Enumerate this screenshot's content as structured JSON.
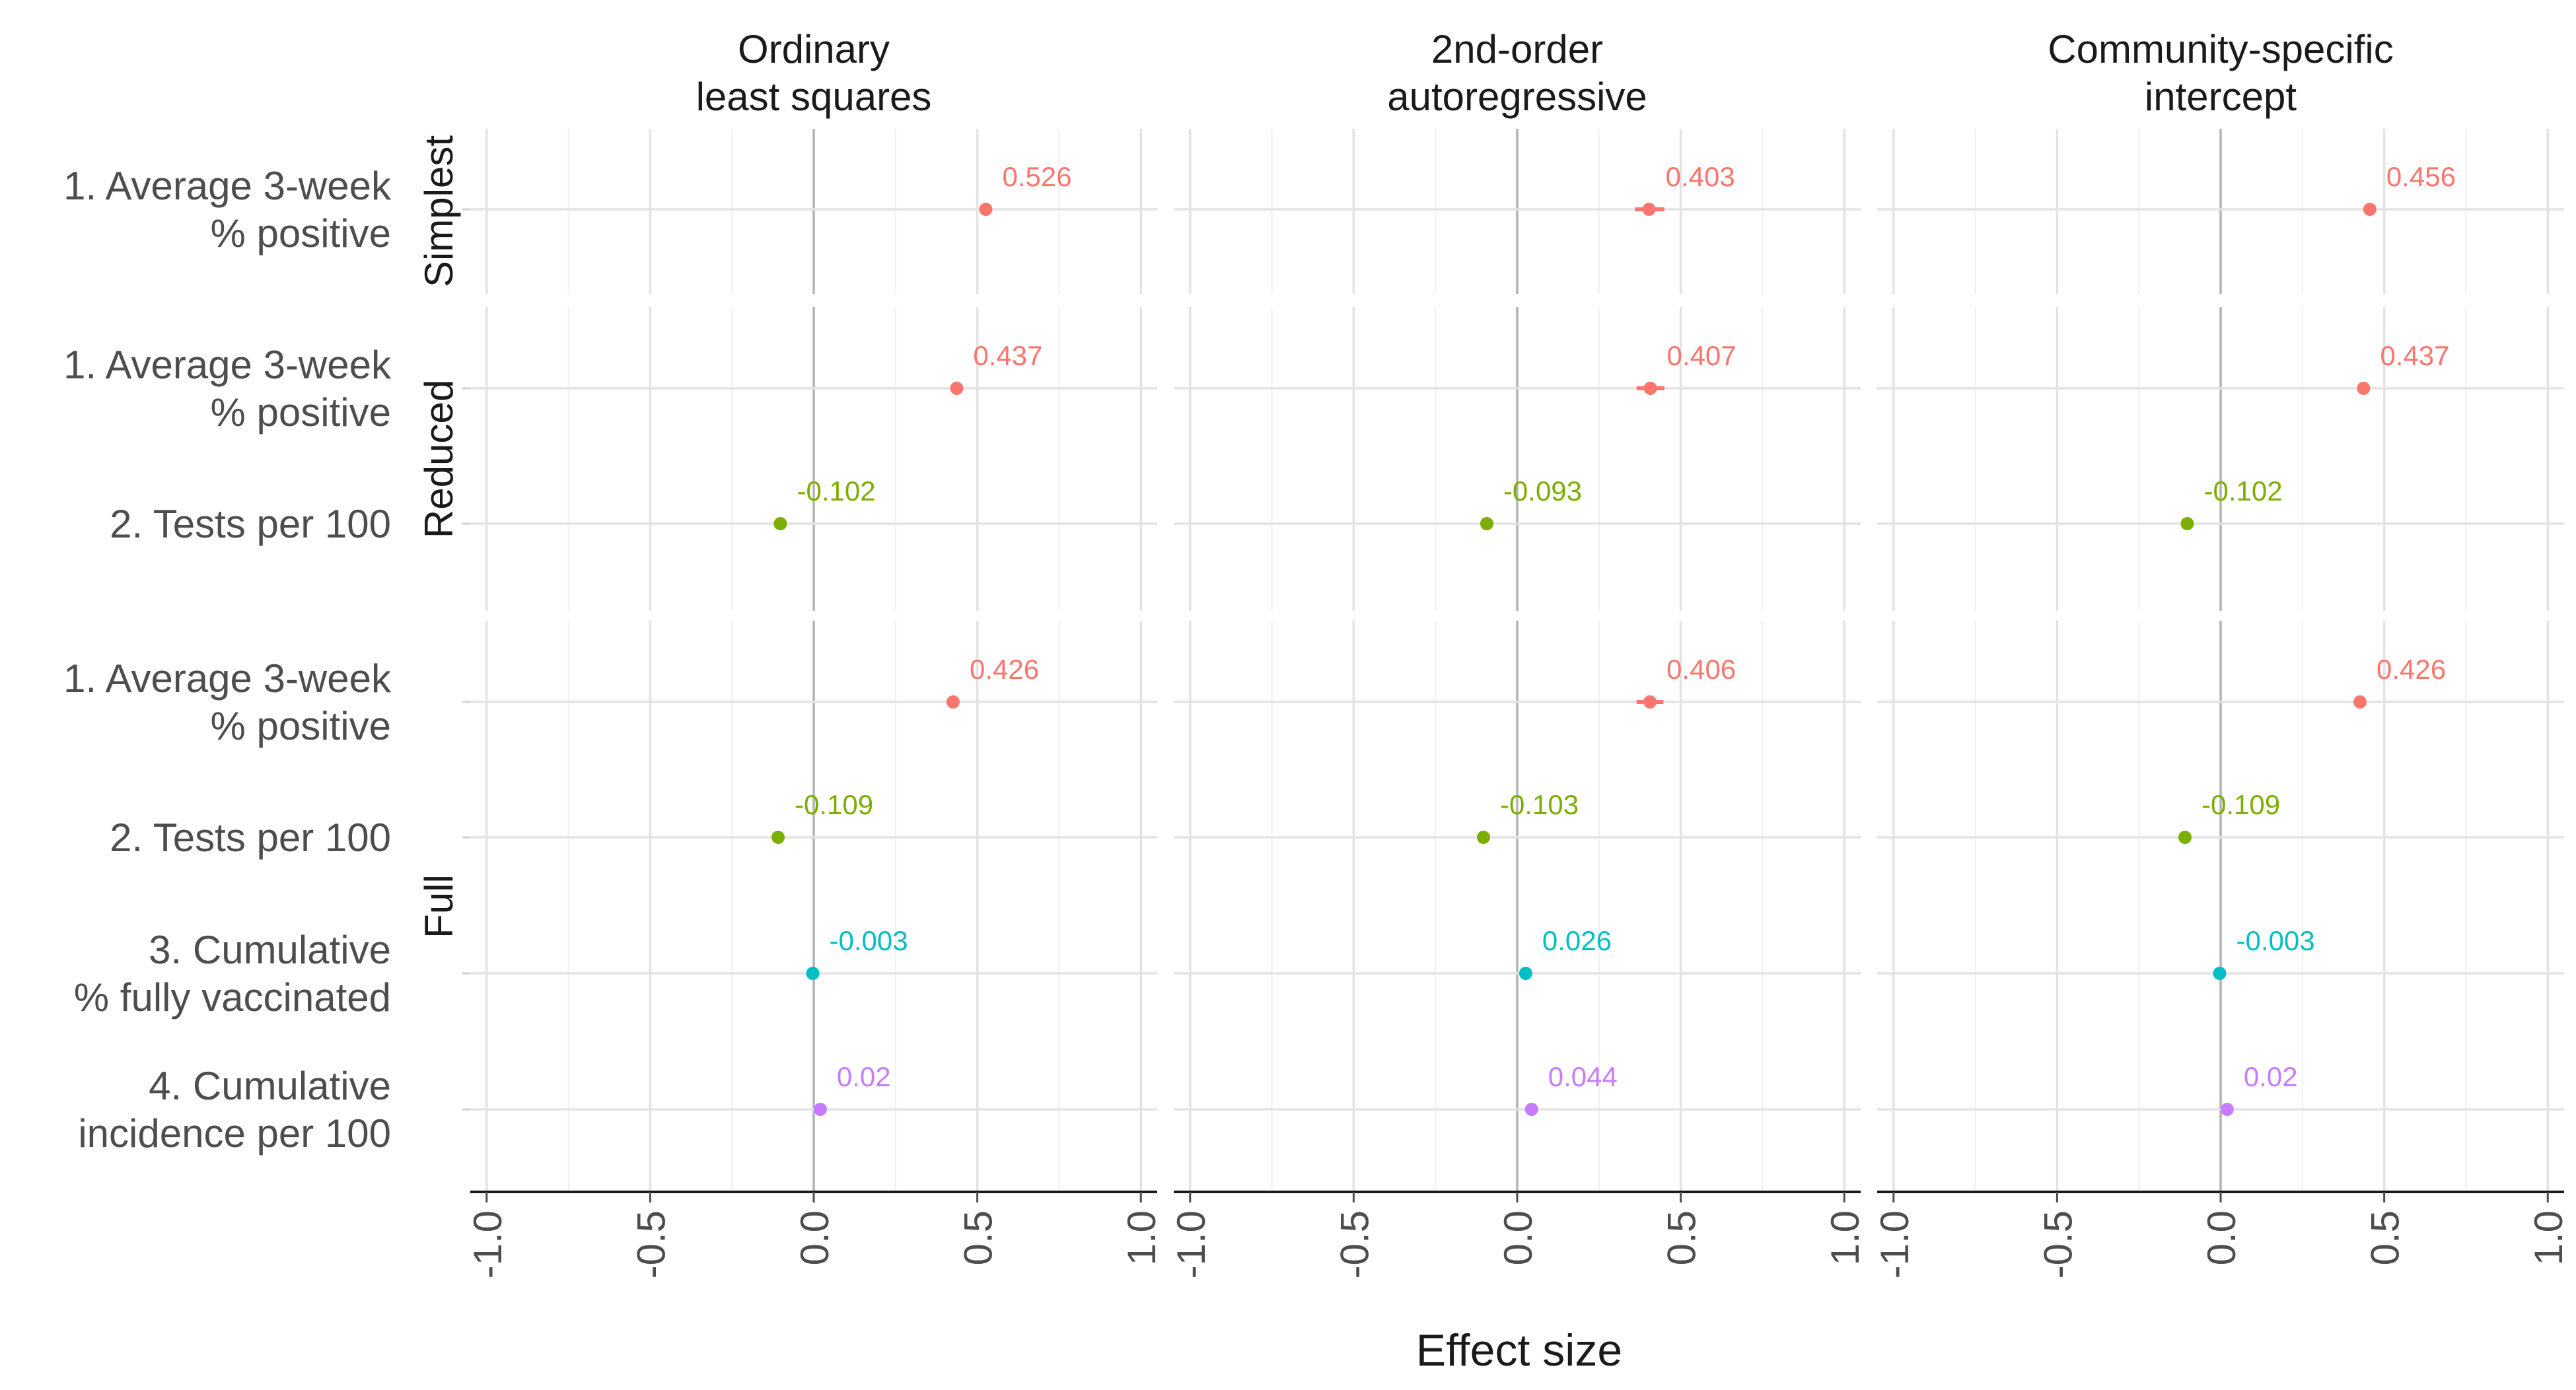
{
  "chart_data": {
    "type": "scatter",
    "xlabel": "Effect size",
    "ylabel": "",
    "xlim": [
      -1.05,
      1.05
    ],
    "x_ticks": [
      -1.0,
      -0.5,
      0.0,
      0.5,
      1.0
    ],
    "x_tick_labels": [
      "-1.0",
      "-0.5",
      "0.0",
      "0.5",
      "1.0"
    ],
    "grid": true,
    "legend": "none",
    "columns": [
      {
        "key": "ols",
        "title_lines": [
          "Ordinary",
          "least squares"
        ]
      },
      {
        "key": "ar2",
        "title_lines": [
          "2nd-order",
          "autoregressive"
        ]
      },
      {
        "key": "csi",
        "title_lines": [
          "Community-specific",
          "intercept"
        ]
      }
    ],
    "rows": [
      {
        "key": "simplest",
        "label": "Simplest",
        "variables": [
          1
        ]
      },
      {
        "key": "reduced",
        "label": "Reduced",
        "variables": [
          1,
          2
        ]
      },
      {
        "key": "full",
        "label": "Full",
        "variables": [
          1,
          2,
          3,
          4
        ]
      }
    ],
    "variables": [
      {
        "id": 1,
        "label_lines": [
          "1. Average 3-week",
          "% positive"
        ],
        "color": "#F8766D"
      },
      {
        "id": 2,
        "label_lines": [
          "2. Tests per 100"
        ],
        "color": "#7CAE00"
      },
      {
        "id": 3,
        "label_lines": [
          "3. Cumulative",
          "% fully vaccinated"
        ],
        "color": "#00BFC4"
      },
      {
        "id": 4,
        "label_lines": [
          "4. Cumulative",
          "incidence per 100"
        ],
        "color": "#C77CFF"
      }
    ],
    "points": [
      {
        "row": "simplest",
        "col": "ols",
        "var": 1,
        "value": 0.526,
        "ci": [
          0.51,
          0.54
        ],
        "label": "0.526"
      },
      {
        "row": "simplest",
        "col": "ar2",
        "var": 1,
        "value": 0.403,
        "ci": [
          0.36,
          0.45
        ],
        "label": "0.403"
      },
      {
        "row": "simplest",
        "col": "csi",
        "var": 1,
        "value": 0.456,
        "ci": [
          0.44,
          0.47
        ],
        "label": "0.456"
      },
      {
        "row": "reduced",
        "col": "ols",
        "var": 1,
        "value": 0.437,
        "ci": [
          0.42,
          0.455
        ],
        "label": "0.437"
      },
      {
        "row": "reduced",
        "col": "ols",
        "var": 2,
        "value": -0.102,
        "ci": [
          -0.112,
          -0.092
        ],
        "label": "-0.102"
      },
      {
        "row": "reduced",
        "col": "ar2",
        "var": 1,
        "value": 0.407,
        "ci": [
          0.365,
          0.45
        ],
        "label": "0.407"
      },
      {
        "row": "reduced",
        "col": "ar2",
        "var": 2,
        "value": -0.093,
        "ci": [
          -0.11,
          -0.076
        ],
        "label": "-0.093"
      },
      {
        "row": "reduced",
        "col": "csi",
        "var": 1,
        "value": 0.437,
        "ci": [
          0.42,
          0.455
        ],
        "label": "0.437"
      },
      {
        "row": "reduced",
        "col": "csi",
        "var": 2,
        "value": -0.102,
        "ci": [
          -0.112,
          -0.092
        ],
        "label": "-0.102"
      },
      {
        "row": "full",
        "col": "ols",
        "var": 1,
        "value": 0.426,
        "ci": [
          0.408,
          0.444
        ],
        "label": "0.426"
      },
      {
        "row": "full",
        "col": "ols",
        "var": 2,
        "value": -0.109,
        "ci": [
          -0.12,
          -0.098
        ],
        "label": "-0.109"
      },
      {
        "row": "full",
        "col": "ols",
        "var": 3,
        "value": -0.003,
        "ci": [
          -0.012,
          0.006
        ],
        "label": "-0.003"
      },
      {
        "row": "full",
        "col": "ols",
        "var": 4,
        "value": 0.02,
        "ci": [
          0.01,
          0.03
        ],
        "label": "0.02"
      },
      {
        "row": "full",
        "col": "ar2",
        "var": 1,
        "value": 0.406,
        "ci": [
          0.365,
          0.447
        ],
        "label": "0.406"
      },
      {
        "row": "full",
        "col": "ar2",
        "var": 2,
        "value": -0.103,
        "ci": [
          -0.12,
          -0.086
        ],
        "label": "-0.103"
      },
      {
        "row": "full",
        "col": "ar2",
        "var": 3,
        "value": 0.026,
        "ci": [
          0.012,
          0.04
        ],
        "label": "0.026"
      },
      {
        "row": "full",
        "col": "ar2",
        "var": 4,
        "value": 0.044,
        "ci": [
          0.032,
          0.056
        ],
        "label": "0.044"
      },
      {
        "row": "full",
        "col": "csi",
        "var": 1,
        "value": 0.426,
        "ci": [
          0.408,
          0.444
        ],
        "label": "0.426"
      },
      {
        "row": "full",
        "col": "csi",
        "var": 2,
        "value": -0.109,
        "ci": [
          -0.12,
          -0.098
        ],
        "label": "-0.109"
      },
      {
        "row": "full",
        "col": "csi",
        "var": 3,
        "value": -0.003,
        "ci": [
          -0.012,
          0.006
        ],
        "label": "-0.003"
      },
      {
        "row": "full",
        "col": "csi",
        "var": 4,
        "value": 0.02,
        "ci": [
          0.01,
          0.03
        ],
        "label": "0.02"
      }
    ]
  }
}
